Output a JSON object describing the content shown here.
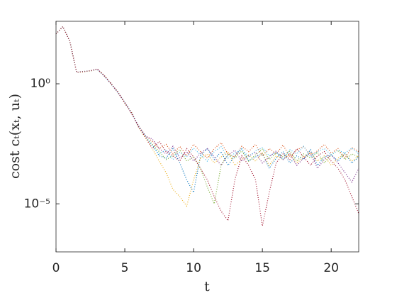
{
  "chart_data": {
    "type": "line",
    "xlabel": "t",
    "ylabel": "cost cₜ(xₜ, uₜ)",
    "x": [
      0,
      0.5,
      1,
      1.5,
      2,
      2.5,
      3,
      3.5,
      4,
      4.5,
      5,
      5.5,
      6,
      6.5,
      7,
      7.5,
      8,
      8.5,
      9,
      9.5,
      10,
      10.5,
      11,
      11.5,
      12,
      12.5,
      13,
      13.5,
      14,
      14.5,
      15,
      15.5,
      16,
      16.5,
      17,
      17.5,
      18,
      18.5,
      19,
      19.5,
      20,
      20.5,
      21,
      21.5,
      22
    ],
    "xlim": [
      0,
      22
    ],
    "xticks": [
      0,
      5,
      10,
      15,
      20
    ],
    "ylim": [
      1e-07,
      400
    ],
    "yticks": [
      {
        "value": 1e-05,
        "label": "10⁻⁵"
      },
      {
        "value": 1,
        "label": "10⁰"
      }
    ],
    "log_y": true,
    "grid": false,
    "series": [
      {
        "color": "#0072BD",
        "values": [
          120,
          240,
          60,
          3,
          3.2,
          3.5,
          4,
          2.2,
          1,
          0.45,
          0.16,
          0.06,
          0.016,
          0.006,
          0.003,
          0.001,
          0.0008,
          0.002,
          0.0005,
          0.0001,
          3e-05,
          0.001,
          0.002,
          0.0007,
          0.0015,
          0.0004,
          0.001,
          0.002,
          0.0006,
          0.0009,
          0.0012,
          0.0003,
          0.0008,
          0.0015,
          0.0005,
          0.001,
          0.0007,
          0.0018,
          0.0004,
          0.0009,
          0.0011,
          0.0006,
          0.0013,
          0.0005,
          0.0009
        ]
      },
      {
        "color": "#D95319",
        "values": [
          120,
          240,
          60,
          3,
          3.3,
          3.4,
          4.1,
          2.1,
          1.05,
          0.42,
          0.17,
          0.055,
          0.018,
          0.007,
          0.004,
          0.002,
          0.003,
          0.0012,
          0.0025,
          0.001,
          0.003,
          0.0015,
          0.0008,
          0.002,
          0.0035,
          0.0012,
          0.0009,
          0.0025,
          0.0015,
          0.003,
          0.001,
          0.002,
          0.0012,
          0.0028,
          0.0009,
          0.0018,
          0.0024,
          0.0011,
          0.0016,
          0.003,
          0.0013,
          0.002,
          0.0008,
          0.0022,
          0.0015
        ]
      },
      {
        "color": "#EDB120",
        "values": [
          120,
          240,
          60,
          3,
          3.1,
          3.6,
          3.9,
          2.3,
          0.95,
          0.46,
          0.15,
          0.065,
          0.015,
          0.0055,
          0.002,
          0.0006,
          0.0002,
          4e-05,
          2e-05,
          8e-06,
          0.0001,
          0.0008,
          0.0012,
          0.0005,
          0.0009,
          0.0015,
          0.0004,
          0.0007,
          0.0011,
          0.0006,
          0.0013,
          0.0004,
          0.001,
          0.0007,
          0.0012,
          0.0005,
          0.0009,
          0.0014,
          0.0006,
          0.001,
          0.0004,
          0.0008,
          0.0012,
          0.0006,
          0.001
        ]
      },
      {
        "color": "#7E2F8E",
        "values": [
          120,
          240,
          60,
          3,
          3.2,
          3.5,
          4.2,
          2.2,
          1,
          0.44,
          0.16,
          0.058,
          0.017,
          0.0065,
          0.005,
          0.002,
          0.0012,
          0.0025,
          0.0008,
          0.0015,
          0.0006,
          0.0013,
          0.002,
          0.0009,
          0.0004,
          0.0011,
          0.0017,
          0.0006,
          0.001,
          0.0014,
          0.0005,
          0.0009,
          0.0016,
          0.0007,
          0.0012,
          0.0004,
          0.0008,
          0.0013,
          0.0003,
          0.0007,
          0.0011,
          0.0005,
          0.0002,
          8e-05,
          0.0003
        ]
      },
      {
        "color": "#77AC30",
        "values": [
          120,
          240,
          60,
          3,
          3.2,
          3.4,
          4,
          2.2,
          1.02,
          0.45,
          0.16,
          0.06,
          0.016,
          0.006,
          0.003,
          0.0015,
          0.0007,
          0.001,
          0.0018,
          0.0006,
          0.0009,
          0.0003,
          5e-05,
          1e-05,
          0.0004,
          0.0012,
          0.0008,
          0.0016,
          0.0006,
          0.0011,
          0.0019,
          0.0007,
          0.0013,
          0.0009,
          0.0016,
          0.0006,
          0.0012,
          0.0008,
          0.0014,
          0.0005,
          0.0011,
          0.0017,
          0.0007,
          0.0012,
          0.0009
        ]
      },
      {
        "color": "#4DBEEE",
        "values": [
          120,
          240,
          60,
          3,
          3.3,
          3.5,
          3.9,
          2.1,
          0.98,
          0.43,
          0.17,
          0.062,
          0.017,
          0.0068,
          0.0025,
          0.0012,
          0.0018,
          0.0007,
          0.0014,
          0.0009,
          0.0021,
          0.0011,
          0.0006,
          0.0015,
          0.0024,
          0.0008,
          0.0013,
          0.0019,
          0.0009,
          0.0016,
          0.0022,
          0.001,
          0.0014,
          0.0007,
          0.0018,
          0.0012,
          0.0025,
          0.0009,
          0.0015,
          0.002,
          0.0011,
          0.0017,
          0.0013,
          0.0021,
          0.0012
        ]
      },
      {
        "color": "#A2142F",
        "values": [
          120,
          240,
          60,
          3,
          3.2,
          3.5,
          4,
          2.2,
          1,
          0.45,
          0.16,
          0.06,
          0.016,
          0.006,
          0.002,
          0.004,
          0.0015,
          0.001,
          0.0006,
          0.002,
          0.0009,
          0.0003,
          0.0001,
          2e-05,
          5e-06,
          2e-06,
          0.0001,
          0.001,
          0.0004,
          0.0001,
          1.2e-06,
          3e-05,
          0.0005,
          0.0012,
          0.0007,
          0.002,
          0.0009,
          0.0004,
          0.001,
          0.0015,
          0.0006,
          0.0003,
          0.0001,
          2e-05,
          4e-06
        ]
      }
    ]
  }
}
